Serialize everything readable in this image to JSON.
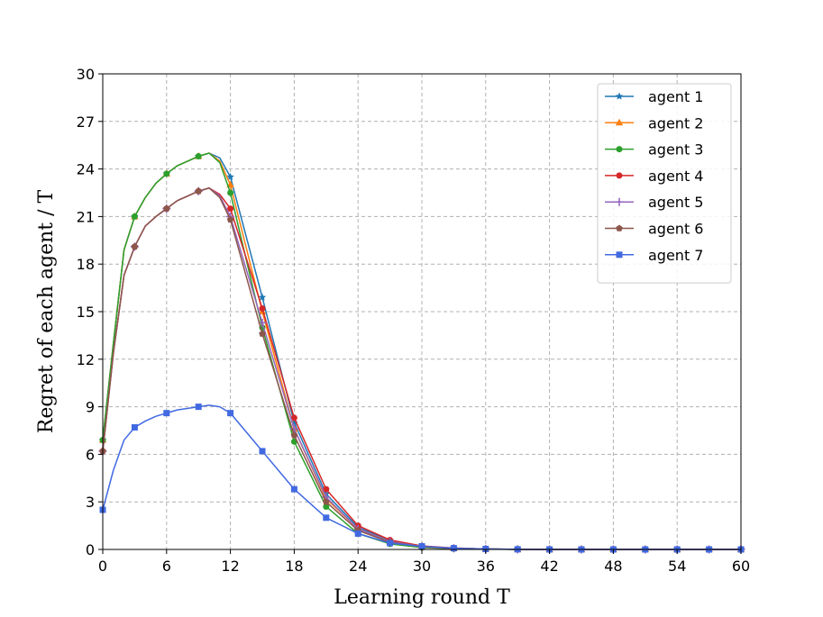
{
  "chart_data": {
    "type": "line",
    "xlabel": "Learning round T",
    "ylabel": "Regret of each agent / T",
    "xlim": [
      0,
      60
    ],
    "ylim": [
      0,
      30
    ],
    "xticks": [
      0,
      6,
      12,
      18,
      24,
      30,
      36,
      42,
      48,
      54,
      60
    ],
    "yticks": [
      0,
      3,
      6,
      9,
      12,
      15,
      18,
      21,
      24,
      27,
      30
    ],
    "grid": true,
    "legend_position": "top-right",
    "series": [
      {
        "name": "agent 1",
        "color": "#1f77b4",
        "marker": "star",
        "x": [
          0,
          1,
          2,
          3,
          4,
          5,
          6,
          7,
          8,
          9,
          10,
          11,
          12,
          15,
          18,
          21,
          24,
          27,
          30,
          33,
          36,
          39,
          42,
          45,
          48,
          51,
          54,
          57,
          60
        ],
        "y": [
          6.9,
          13.0,
          18.9,
          21.0,
          22.2,
          23.1,
          23.7,
          24.2,
          24.5,
          24.8,
          25.0,
          24.7,
          23.5,
          15.9,
          8.0,
          3.5,
          1.4,
          0.55,
          0.2,
          0.08,
          0.03,
          0.01,
          0,
          0,
          0,
          0,
          0,
          0,
          0
        ]
      },
      {
        "name": "agent 2",
        "color": "#ff7f0e",
        "marker": "triangle",
        "x": [
          0,
          1,
          2,
          3,
          4,
          5,
          6,
          7,
          8,
          9,
          10,
          11,
          12,
          15,
          18,
          21,
          24,
          27,
          30,
          33,
          36,
          39,
          42,
          45,
          48,
          51,
          54,
          57,
          60
        ],
        "y": [
          6.9,
          13.0,
          18.9,
          21.0,
          22.2,
          23.1,
          23.7,
          24.2,
          24.5,
          24.8,
          25.0,
          24.5,
          23.0,
          15.0,
          7.6,
          3.2,
          1.3,
          0.5,
          0.18,
          0.07,
          0.03,
          0.01,
          0,
          0,
          0,
          0,
          0,
          0,
          0
        ]
      },
      {
        "name": "agent 3",
        "color": "#2ca02c",
        "marker": "circle",
        "x": [
          0,
          1,
          2,
          3,
          4,
          5,
          6,
          7,
          8,
          9,
          10,
          11,
          12,
          15,
          18,
          21,
          24,
          27,
          30,
          33,
          36,
          39,
          42,
          45,
          48,
          51,
          54,
          57,
          60
        ],
        "y": [
          6.9,
          13.0,
          18.9,
          21.0,
          22.2,
          23.1,
          23.7,
          24.2,
          24.5,
          24.8,
          25.0,
          24.4,
          22.5,
          14.0,
          6.8,
          2.7,
          1.0,
          0.35,
          0.12,
          0.05,
          0.02,
          0.01,
          0,
          0,
          0,
          0,
          0,
          0,
          0
        ]
      },
      {
        "name": "agent 4",
        "color": "#d62728",
        "marker": "circle",
        "x": [
          0,
          1,
          2,
          3,
          4,
          5,
          6,
          7,
          8,
          9,
          10,
          11,
          12,
          15,
          18,
          21,
          24,
          27,
          30,
          33,
          36,
          39,
          42,
          45,
          48,
          51,
          54,
          57,
          60
        ],
        "y": [
          6.2,
          12.4,
          17.3,
          19.1,
          20.4,
          21.0,
          21.5,
          22.0,
          22.3,
          22.6,
          22.8,
          22.4,
          21.5,
          15.2,
          8.3,
          3.8,
          1.5,
          0.6,
          0.22,
          0.09,
          0.03,
          0.01,
          0,
          0,
          0,
          0,
          0,
          0,
          0
        ]
      },
      {
        "name": "agent 5",
        "color": "#9467bd",
        "marker": "plus",
        "x": [
          0,
          1,
          2,
          3,
          4,
          5,
          6,
          7,
          8,
          9,
          10,
          11,
          12,
          15,
          18,
          21,
          24,
          27,
          30,
          33,
          36,
          39,
          42,
          45,
          48,
          51,
          54,
          57,
          60
        ],
        "y": [
          6.2,
          12.4,
          17.3,
          19.1,
          20.4,
          21.0,
          21.5,
          22.0,
          22.3,
          22.6,
          22.8,
          22.3,
          21.0,
          14.3,
          7.6,
          3.3,
          1.3,
          0.5,
          0.18,
          0.07,
          0.03,
          0.01,
          0,
          0,
          0,
          0,
          0,
          0,
          0
        ]
      },
      {
        "name": "agent 6",
        "color": "#8c564b",
        "marker": "pentagon",
        "x": [
          0,
          1,
          2,
          3,
          4,
          5,
          6,
          7,
          8,
          9,
          10,
          11,
          12,
          15,
          18,
          21,
          24,
          27,
          30,
          33,
          36,
          39,
          42,
          45,
          48,
          51,
          54,
          57,
          60
        ],
        "y": [
          6.2,
          12.4,
          17.3,
          19.1,
          20.4,
          21.0,
          21.5,
          22.0,
          22.3,
          22.6,
          22.8,
          22.2,
          20.8,
          13.6,
          7.2,
          3.0,
          1.2,
          0.45,
          0.16,
          0.06,
          0.02,
          0.01,
          0,
          0,
          0,
          0,
          0,
          0,
          0
        ]
      },
      {
        "name": "agent 7",
        "color": "#4169e1",
        "marker": "square",
        "x": [
          0,
          1,
          2,
          3,
          4,
          5,
          6,
          7,
          8,
          9,
          10,
          11,
          12,
          15,
          18,
          21,
          24,
          27,
          30,
          33,
          36,
          39,
          42,
          45,
          48,
          51,
          54,
          57,
          60
        ],
        "y": [
          2.5,
          5.0,
          6.9,
          7.7,
          8.1,
          8.4,
          8.6,
          8.8,
          8.9,
          9.0,
          9.1,
          9.0,
          8.6,
          6.2,
          3.8,
          2.0,
          1.0,
          0.4,
          0.2,
          0.08,
          0.03,
          0.01,
          0,
          0,
          0,
          0,
          0,
          0,
          0
        ]
      }
    ]
  }
}
